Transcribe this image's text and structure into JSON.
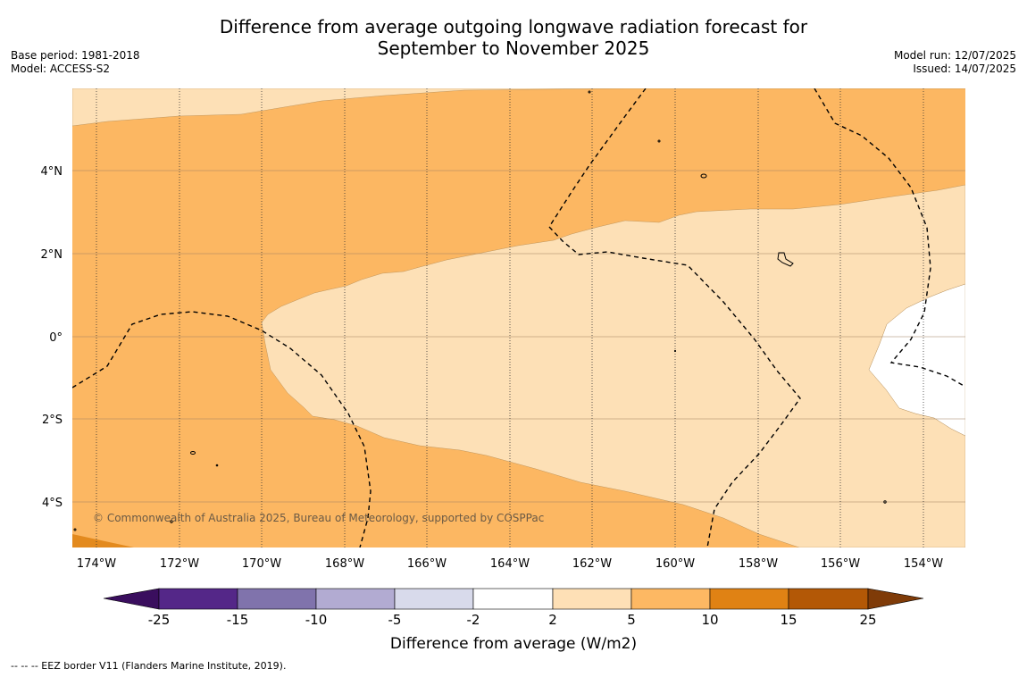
{
  "title": {
    "line1": "Difference from average outgoing longwave radiation forecast for",
    "line2": "September to November 2025"
  },
  "meta_left": {
    "base_period": "Base period: 1981-2018",
    "model": "Model: ACCESS-S2"
  },
  "meta_right": {
    "model_run": "Model run: 12/07/2025",
    "issued": "Issued: 14/07/2025"
  },
  "map": {
    "copyright": "© Commonwealth of Australia 2025, Bureau of Meteorology, supported by COSPPac",
    "lon_ticks": [
      "174°W",
      "172°W",
      "170°W",
      "168°W",
      "166°W",
      "164°W",
      "162°W",
      "160°W",
      "158°W",
      "156°W",
      "154°W"
    ],
    "lat_ticks": [
      "4°N",
      "2°N",
      "0°",
      "2°S",
      "4°S"
    ],
    "colors": {
      "light": "#fde0b6",
      "medium": "#fcb762",
      "dark": "#e38a1e"
    }
  },
  "colorbar": {
    "label": "Difference from average (W/m2)",
    "ticks": [
      "-25",
      "-15",
      "-10",
      "-5",
      "-2",
      "2",
      "5",
      "10",
      "15",
      "25"
    ],
    "colors": [
      "#3a0e5e",
      "#542788",
      "#8073ac",
      "#b2abd2",
      "#d8daeb",
      "#ffffff",
      "#fee0b6",
      "#fdb863",
      "#e08214",
      "#b35806",
      "#7f3b08"
    ]
  },
  "footer": "--  --  -- EEZ border V11 (Flanders Marine Institute, 2019)."
}
